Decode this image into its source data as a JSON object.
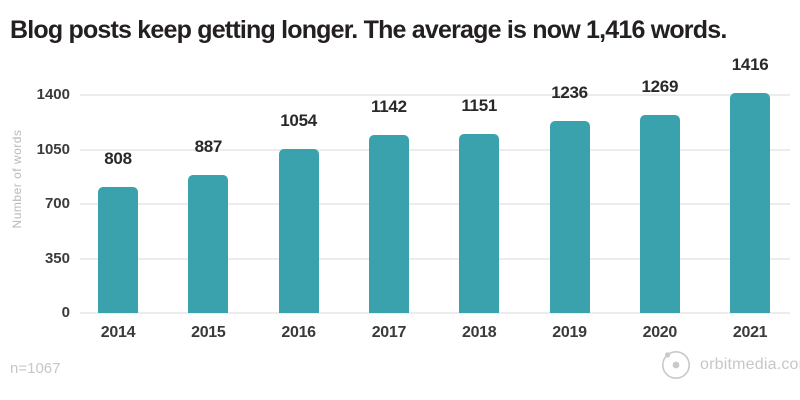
{
  "title": "Blog posts keep getting longer. The average is now 1,416 words.",
  "chart_data": {
    "type": "bar",
    "categories": [
      "2014",
      "2015",
      "2016",
      "2017",
      "2018",
      "2019",
      "2020",
      "2021"
    ],
    "values": [
      808,
      887,
      1054,
      1142,
      1151,
      1236,
      1269,
      1416
    ],
    "title": "Blog posts keep getting longer. The average is now 1,416 words.",
    "xlabel": "",
    "ylabel": "Number of words",
    "ylim": [
      0,
      1400
    ],
    "yticks": [
      0,
      350,
      700,
      1050,
      1400
    ],
    "grid": true,
    "legend": false,
    "value_labels": true
  },
  "footer": {
    "sample_size": "n=1067",
    "brand": "orbitmedia.com"
  },
  "icons": {
    "logo": "orbitmedia-logo-icon"
  },
  "colors": {
    "bar": "#39a2ad",
    "title_text": "#242021",
    "tick_text": "#3a3a3a",
    "value_text": "#2b2828",
    "gridline": "#ececec",
    "muted_text": "#c7c7c7",
    "axis_title_text": "#b9b9b9",
    "background": "#ffffff"
  }
}
